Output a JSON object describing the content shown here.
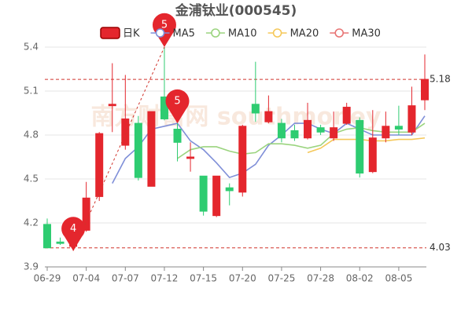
{
  "chart_data": {
    "type": "candlestick",
    "title": "金浦钛业(000545)",
    "watermark": "南方财富网 southmoney",
    "categories": [
      "06-29",
      null,
      null,
      "07-04",
      null,
      null,
      "07-07",
      null,
      null,
      "07-12",
      null,
      null,
      "07-15",
      null,
      null,
      "07-20",
      null,
      null,
      "07-25",
      null,
      null,
      "07-28",
      null,
      null,
      "08-02",
      null,
      null,
      "08-05",
      null,
      null
    ],
    "ylim": [
      3.9,
      5.4
    ],
    "yticks": [
      3.9,
      4.2,
      4.5,
      4.8,
      5.1,
      5.4
    ],
    "grid": true,
    "series": [
      {
        "name": "日K",
        "type": "candlestick",
        "up_color": "#e4262d",
        "down_color": "#2ecc71",
        "open": [
          4.19,
          4.07,
          4.04,
          4.15,
          4.38,
          5.0,
          4.73,
          4.88,
          4.45,
          5.06,
          4.84,
          4.64,
          4.52,
          4.25,
          4.44,
          4.41,
          5.01,
          4.89,
          4.88,
          4.83,
          4.78,
          4.85,
          4.78,
          4.88,
          4.9,
          4.55,
          4.78,
          4.86,
          4.82,
          5.04
        ],
        "close": [
          4.03,
          4.06,
          4.07,
          4.37,
          4.81,
          5.01,
          4.91,
          4.51,
          4.96,
          4.91,
          4.75,
          4.65,
          4.28,
          4.52,
          4.42,
          4.86,
          4.95,
          4.96,
          4.78,
          4.78,
          4.9,
          4.82,
          4.85,
          4.99,
          4.54,
          4.78,
          4.86,
          4.84,
          5.0,
          5.18
        ],
        "high": [
          4.23,
          4.1,
          4.09,
          4.48,
          4.82,
          5.29,
          5.21,
          4.93,
          4.96,
          5.4,
          4.88,
          4.75,
          4.52,
          4.52,
          4.47,
          4.87,
          5.3,
          5.07,
          4.91,
          4.87,
          5.02,
          4.87,
          4.96,
          5.02,
          4.92,
          4.97,
          4.96,
          5.0,
          5.13,
          5.35
        ],
        "low": [
          4.03,
          4.05,
          4.01,
          4.14,
          4.35,
          4.82,
          4.7,
          4.49,
          4.45,
          4.9,
          4.62,
          4.55,
          4.25,
          4.24,
          4.32,
          4.38,
          4.89,
          4.88,
          4.75,
          4.76,
          4.77,
          4.8,
          4.76,
          4.87,
          4.51,
          4.54,
          4.75,
          4.8,
          4.8,
          4.97
        ]
      },
      {
        "name": "MA5",
        "color": "#7f8fd8",
        "values": [
          null,
          null,
          null,
          null,
          null,
          4.47,
          4.64,
          4.72,
          4.84,
          4.86,
          4.88,
          4.76,
          4.7,
          4.61,
          4.51,
          4.54,
          4.6,
          4.73,
          4.8,
          4.88,
          4.88,
          4.84,
          4.81,
          4.88,
          4.84,
          4.8,
          4.8,
          4.8,
          4.8,
          4.93
        ]
      },
      {
        "name": "MA10",
        "color": "#9bd47f",
        "values": [
          null,
          null,
          null,
          null,
          null,
          null,
          null,
          null,
          null,
          null,
          4.64,
          4.7,
          4.72,
          4.72,
          4.69,
          4.67,
          4.68,
          4.74,
          4.74,
          4.73,
          4.71,
          4.73,
          4.81,
          4.84,
          4.85,
          4.83,
          4.82,
          4.82,
          4.82,
          4.88
        ]
      },
      {
        "name": "MA20",
        "color": "#f5c85a",
        "values": [
          null,
          null,
          null,
          null,
          null,
          null,
          null,
          null,
          null,
          null,
          null,
          null,
          null,
          null,
          null,
          null,
          null,
          null,
          null,
          null,
          4.68,
          4.71,
          4.77,
          4.77,
          4.77,
          4.76,
          4.76,
          4.77,
          4.77,
          4.78
        ]
      },
      {
        "name": "MA30",
        "color": "#e87474",
        "values": [
          null,
          null,
          null,
          null,
          null,
          null,
          null,
          null,
          null,
          null,
          null,
          null,
          null,
          null,
          null,
          null,
          null,
          null,
          null,
          null,
          null,
          null,
          null,
          null,
          null,
          null,
          null,
          null,
          null,
          null
        ]
      }
    ],
    "mark_lines": [
      5.18,
      4.03
    ],
    "annotations": [
      {
        "index": 9,
        "value": 5.4,
        "label": "5"
      },
      {
        "index": 10,
        "value": 4.88,
        "label": "5"
      },
      {
        "index": 2,
        "value": 4.01,
        "label": "4"
      }
    ]
  }
}
